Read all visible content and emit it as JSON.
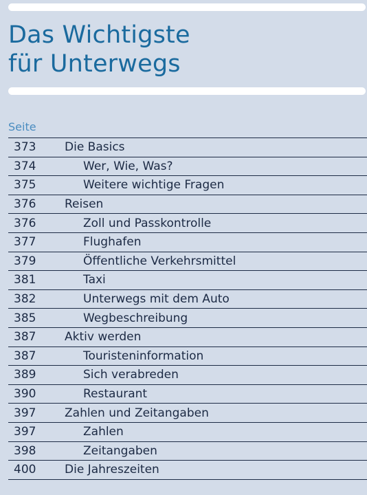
{
  "title": {
    "line1": "Das Wichtigste",
    "line2": "für Unterwegs"
  },
  "column_header": "Seite",
  "entries": [
    {
      "page": "373",
      "label": "Die Basics",
      "level": 0
    },
    {
      "page": "374",
      "label": "Wer, Wie, Was?",
      "level": 1
    },
    {
      "page": "375",
      "label": "Weitere wichtige Fragen",
      "level": 1
    },
    {
      "page": "376",
      "label": "Reisen",
      "level": 0
    },
    {
      "page": "376",
      "label": "Zoll und Passkontrolle",
      "level": 1
    },
    {
      "page": "377",
      "label": "Flughafen",
      "level": 1
    },
    {
      "page": "379",
      "label": "Öffentliche Verkehrsmittel",
      "level": 1
    },
    {
      "page": "381",
      "label": "Taxi",
      "level": 1
    },
    {
      "page": "382",
      "label": "Unterwegs mit dem Auto",
      "level": 1
    },
    {
      "page": "385",
      "label": "Wegbeschreibung",
      "level": 1
    },
    {
      "page": "387",
      "label": "Aktiv werden",
      "level": 0
    },
    {
      "page": "387",
      "label": "Touristeninformation",
      "level": 1
    },
    {
      "page": "389",
      "label": "Sich verabreden",
      "level": 1
    },
    {
      "page": "390",
      "label": "Restaurant",
      "level": 1
    },
    {
      "page": "397",
      "label": "Zahlen und Zeitangaben",
      "level": 0
    },
    {
      "page": "397",
      "label": "Zahlen",
      "level": 1
    },
    {
      "page": "398",
      "label": "Zeitangaben",
      "level": 1
    },
    {
      "page": "400",
      "label": "Die Jahreszeiten",
      "level": 0
    }
  ]
}
